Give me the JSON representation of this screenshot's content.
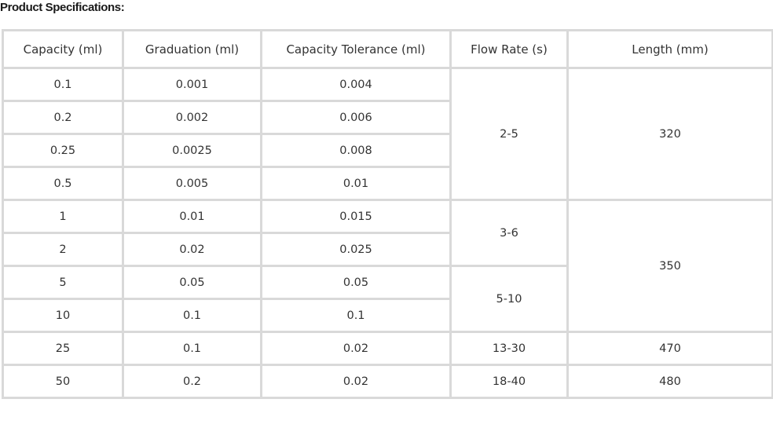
{
  "title": "Product Specifications:",
  "table": {
    "headers": [
      "Capacity (ml)",
      "Graduation (ml)",
      "Capacity Tolerance (ml)",
      "Flow Rate (s)",
      "Length (mm)"
    ],
    "rows": [
      {
        "capacity": "0.1",
        "graduation": "0.001",
        "tolerance": "0.004"
      },
      {
        "capacity": "0.2",
        "graduation": "0.002",
        "tolerance": "0.006"
      },
      {
        "capacity": "0.25",
        "graduation": "0.0025",
        "tolerance": "0.008"
      },
      {
        "capacity": "0.5",
        "graduation": "0.005",
        "tolerance": "0.01"
      },
      {
        "capacity": "1",
        "graduation": "0.01",
        "tolerance": "0.015"
      },
      {
        "capacity": "2",
        "graduation": "0.02",
        "tolerance": "0.025"
      },
      {
        "capacity": "5",
        "graduation": "0.05",
        "tolerance": "0.05"
      },
      {
        "capacity": "10",
        "graduation": "0.1",
        "tolerance": "0.1"
      },
      {
        "capacity": "25",
        "graduation": "0.1",
        "tolerance": "0.02"
      },
      {
        "capacity": "50",
        "graduation": "0.2",
        "tolerance": "0.02"
      }
    ],
    "flow_rate_groups": [
      "2-5",
      "3-6",
      "5-10",
      "13-30",
      "18-40"
    ],
    "length_groups": [
      "320",
      "350",
      "470",
      "480"
    ]
  }
}
